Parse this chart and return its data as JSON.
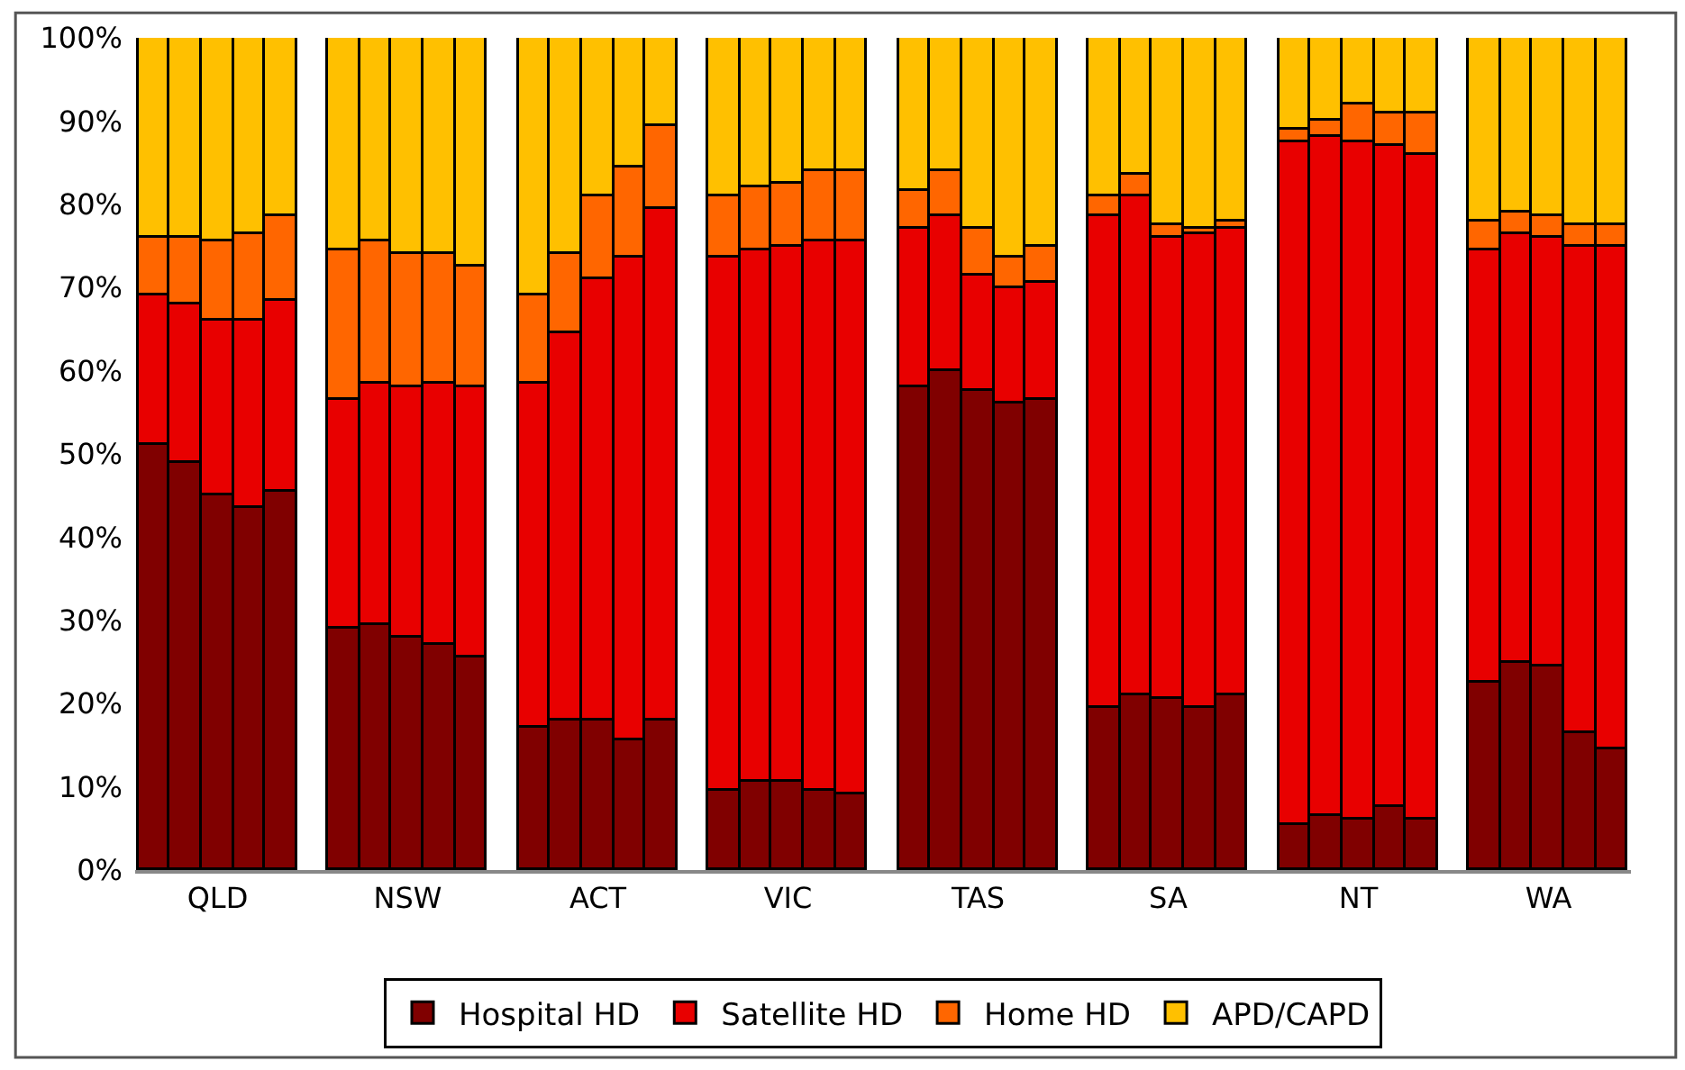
{
  "chart_data": {
    "type": "bar",
    "stacked": true,
    "categories": [
      null,
      null,
      "QLD",
      null,
      null,
      null,
      null,
      null,
      "NSW",
      null,
      null,
      null,
      null,
      null,
      "ACT",
      null,
      null,
      null,
      null,
      null,
      "VIC",
      null,
      null,
      null,
      null,
      null,
      "TAS",
      null,
      null,
      null,
      null,
      null,
      "SA",
      null,
      null,
      null,
      null,
      null,
      "NT",
      null,
      null,
      null,
      null,
      null,
      "WA",
      null,
      null
    ],
    "series": [
      {
        "name": "Hospital HD",
        "color": "#800000",
        "values": [
          51,
          49,
          45,
          43.5,
          45.5,
          null,
          29,
          29.5,
          28,
          27,
          25.5,
          null,
          17,
          18,
          18,
          15.5,
          18,
          null,
          9.5,
          10.5,
          10.5,
          9.5,
          9,
          null,
          58,
          60,
          57.5,
          56,
          56.5,
          null,
          19.5,
          21,
          20.5,
          19.5,
          21,
          null,
          5.5,
          6.5,
          6,
          7.5,
          6,
          null,
          22.5,
          25,
          24.5,
          16.5,
          14.5
        ]
      },
      {
        "name": "Satellite HD",
        "color": "#e80000",
        "values": [
          18,
          19,
          21,
          22.5,
          23,
          null,
          27.5,
          29,
          30,
          31.5,
          32.5,
          null,
          41.5,
          46.5,
          53,
          58,
          61.5,
          null,
          64,
          64,
          64.5,
          66,
          66.5,
          null,
          19,
          18.5,
          14,
          14,
          14,
          null,
          59,
          60,
          55.5,
          57,
          56,
          null,
          82,
          81.5,
          81.5,
          79.5,
          80,
          null,
          52,
          51.5,
          51.5,
          58.5,
          60.5
        ]
      },
      {
        "name": "Home HD",
        "color": "#ff6600",
        "values": [
          7,
          8,
          9.5,
          10.5,
          10,
          null,
          18,
          17,
          16,
          15.5,
          14.5,
          null,
          10.5,
          9.5,
          10,
          11,
          10,
          null,
          7.5,
          7.5,
          7.5,
          8.5,
          8.5,
          null,
          4.5,
          5.5,
          5.5,
          3.5,
          4.5,
          null,
          2.5,
          2.5,
          1.5,
          0.5,
          1,
          null,
          1.5,
          2,
          4.5,
          4,
          5,
          null,
          3.5,
          2.5,
          2.5,
          2.5,
          2.5
        ]
      },
      {
        "name": "APD/CAPD",
        "color": "#ffc000",
        "values": [
          24,
          24,
          24.5,
          23.5,
          21.5,
          null,
          25.5,
          24.5,
          26,
          26,
          27.5,
          null,
          31,
          26,
          19,
          15.5,
          10.5,
          null,
          19,
          18,
          17.5,
          16,
          16,
          null,
          18.5,
          16,
          23,
          26.5,
          25,
          null,
          19,
          16.5,
          22.5,
          23,
          22,
          null,
          11,
          10,
          8,
          9,
          9,
          null,
          22,
          21,
          21.5,
          22.5,
          22.5
        ]
      }
    ],
    "ylim": [
      0,
      100
    ],
    "yticks": [
      {
        "value": 0,
        "label": "0%"
      },
      {
        "value": 10,
        "label": "10%"
      },
      {
        "value": 20,
        "label": "20%"
      },
      {
        "value": 30,
        "label": "30%"
      },
      {
        "value": 40,
        "label": "40%"
      },
      {
        "value": 50,
        "label": "50%"
      },
      {
        "value": 60,
        "label": "60%"
      },
      {
        "value": 70,
        "label": "70%"
      },
      {
        "value": 80,
        "label": "80%"
      },
      {
        "value": 90,
        "label": "90%"
      },
      {
        "value": 100,
        "label": "100%"
      }
    ],
    "legend": "bottom"
  }
}
